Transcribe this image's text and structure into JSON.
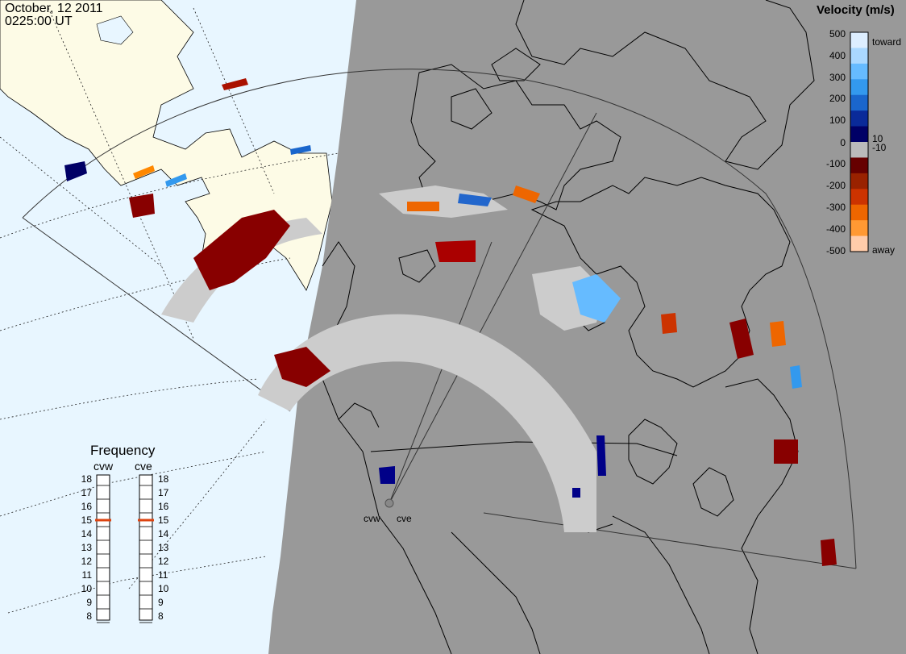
{
  "header": {
    "date": "October, 12 2011",
    "time": "0225:00 UT"
  },
  "colorbar": {
    "title": "Velocity (m/s)",
    "ticks": [
      "500",
      "400",
      "300",
      "200",
      "100",
      "10",
      "0",
      "-10",
      "-100",
      "-200",
      "-300",
      "-400",
      "-500"
    ],
    "toward_label": "toward",
    "away_label": "away",
    "colors": [
      "#ddeeff",
      "#aad8ff",
      "#66bbff",
      "#3399ee",
      "#1a66cc",
      "#0a2a99",
      "#000066",
      "#bbbbbb",
      "#660000",
      "#992200",
      "#cc3300",
      "#ee6600",
      "#ff9933",
      "#ffccaa"
    ]
  },
  "frequency": {
    "title": "Frequency",
    "radar_labels": [
      "cvw",
      "cve"
    ],
    "ticks": [
      "18",
      "17",
      "16",
      "15",
      "14",
      "13",
      "12",
      "11",
      "10",
      "9",
      "8"
    ],
    "cvw_value": 15,
    "cve_value": 15,
    "marker_color": "#dd4411"
  },
  "radar_sites": [
    "cvw",
    "cve"
  ],
  "colors": {
    "night": "#999999",
    "day_ocean": "#e8f6ff",
    "day_land": "#fdfbe6",
    "ground_scatter": "#cccccc"
  }
}
